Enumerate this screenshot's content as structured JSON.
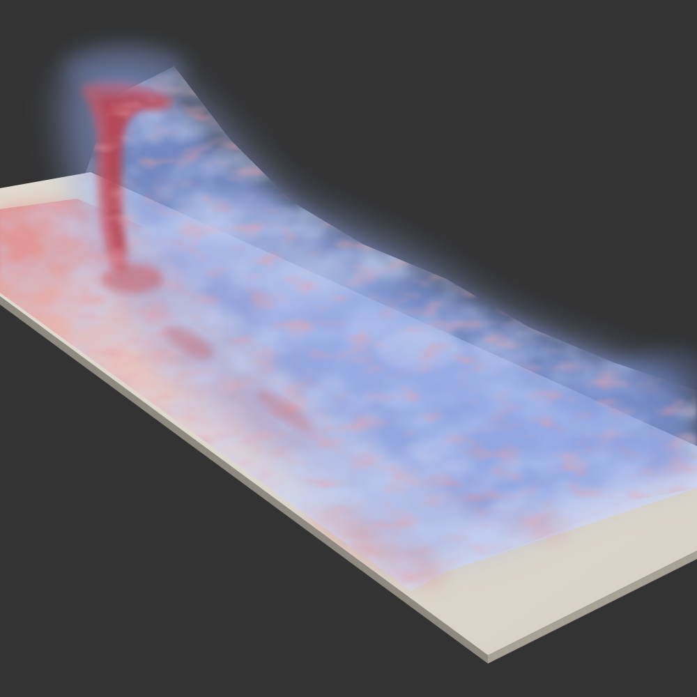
{
  "scene": {
    "background_color": "#333333",
    "plate_color": "#e2ddd1",
    "plate_edge_color": "#8f8a80",
    "low_value_color": "#8fa6e4",
    "high_value_color": "#c95561",
    "neutral_color": "#dcdbe8"
  }
}
